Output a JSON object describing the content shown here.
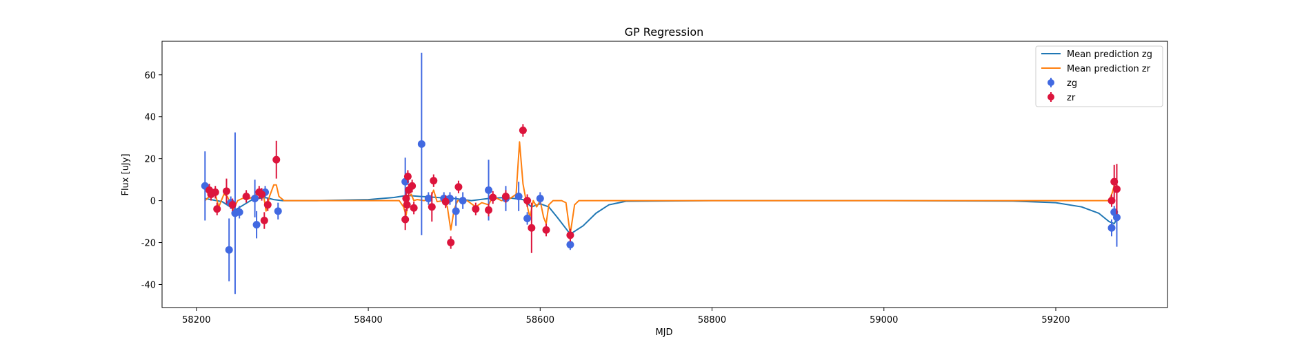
{
  "chart_data": {
    "type": "scatter",
    "title": "GP Regression",
    "xlabel": "MJD",
    "ylabel": "Flux [uJy]",
    "xlim": [
      58160,
      59330
    ],
    "ylim": [
      -51,
      76
    ],
    "xticks": [
      58200,
      58400,
      58600,
      58800,
      59000,
      59200
    ],
    "yticks": [
      -40,
      -20,
      0,
      20,
      40,
      60
    ],
    "grid": false,
    "legend_position": "top-right",
    "legend": [
      "Mean prediction zg",
      "Mean prediction zr",
      "zg",
      "zr"
    ],
    "colors": {
      "mean_zg": "#1f77b4",
      "mean_zr": "#ff7f0e",
      "zg": "#4169e1",
      "zr": "#dc143c"
    },
    "series": [
      {
        "name": "zg",
        "kind": "errorbar",
        "points": [
          {
            "x": 58210,
            "y": 7,
            "err": 16.5
          },
          {
            "x": 58238,
            "y": -23.5,
            "err": 15
          },
          {
            "x": 58240,
            "y": -1,
            "err": 3
          },
          {
            "x": 58245,
            "y": -6,
            "err": 38.5
          },
          {
            "x": 58250,
            "y": -5.5,
            "err": 3
          },
          {
            "x": 58268,
            "y": 1,
            "err": 9
          },
          {
            "x": 58270,
            "y": -11.5,
            "err": 6.5
          },
          {
            "x": 58280,
            "y": 4,
            "err": 3
          },
          {
            "x": 58295,
            "y": -5,
            "err": 4
          },
          {
            "x": 58443,
            "y": 9,
            "err": 11.5
          },
          {
            "x": 58462,
            "y": 27,
            "err": 43.5
          },
          {
            "x": 58470,
            "y": 1,
            "err": 3
          },
          {
            "x": 58488,
            "y": 1,
            "err": 3
          },
          {
            "x": 58495,
            "y": 1,
            "err": 3
          },
          {
            "x": 58502,
            "y": -5,
            "err": 7
          },
          {
            "x": 58510,
            "y": 0,
            "err": 4
          },
          {
            "x": 58540,
            "y": 5,
            "err": 14.5
          },
          {
            "x": 58560,
            "y": 1,
            "err": 6
          },
          {
            "x": 58575,
            "y": 2,
            "err": 7
          },
          {
            "x": 58585,
            "y": -8.5,
            "err": 3
          },
          {
            "x": 58600,
            "y": 1,
            "err": 3
          },
          {
            "x": 58635,
            "y": -21,
            "err": 2.5
          },
          {
            "x": 59265,
            "y": -13,
            "err": 4
          },
          {
            "x": 59268,
            "y": -5.5,
            "err": 3
          },
          {
            "x": 59271,
            "y": -8,
            "err": 14
          }
        ]
      },
      {
        "name": "zr",
        "kind": "errorbar",
        "points": [
          {
            "x": 58215,
            "y": 5,
            "err": 3
          },
          {
            "x": 58217,
            "y": 3,
            "err": 3
          },
          {
            "x": 58222,
            "y": 4,
            "err": 3
          },
          {
            "x": 58224,
            "y": -4,
            "err": 3
          },
          {
            "x": 58235,
            "y": 4.5,
            "err": 6
          },
          {
            "x": 58242,
            "y": -2,
            "err": 3
          },
          {
            "x": 58258,
            "y": 2,
            "err": 3
          },
          {
            "x": 58273,
            "y": 4,
            "err": 3
          },
          {
            "x": 58276,
            "y": 3,
            "err": 3
          },
          {
            "x": 58279,
            "y": -9.5,
            "err": 4
          },
          {
            "x": 58283,
            "y": -2,
            "err": 3
          },
          {
            "x": 58293,
            "y": 19.5,
            "err": 9
          },
          {
            "x": 58443,
            "y": -9,
            "err": 5
          },
          {
            "x": 58444,
            "y": 1,
            "err": 3
          },
          {
            "x": 58445,
            "y": -2,
            "err": 3
          },
          {
            "x": 58446,
            "y": 11.5,
            "err": 3
          },
          {
            "x": 58447,
            "y": 5,
            "err": 3
          },
          {
            "x": 58451,
            "y": 7,
            "err": 3
          },
          {
            "x": 58453,
            "y": -3.5,
            "err": 3
          },
          {
            "x": 58474,
            "y": -3,
            "err": 7
          },
          {
            "x": 58476,
            "y": 9.5,
            "err": 3
          },
          {
            "x": 58490,
            "y": -0.5,
            "err": 3
          },
          {
            "x": 58496,
            "y": -20,
            "err": 3
          },
          {
            "x": 58505,
            "y": 6.5,
            "err": 3
          },
          {
            "x": 58525,
            "y": -4,
            "err": 3
          },
          {
            "x": 58540,
            "y": -4.5,
            "err": 3
          },
          {
            "x": 58545,
            "y": 1.5,
            "err": 3
          },
          {
            "x": 58560,
            "y": 2,
            "err": 3
          },
          {
            "x": 58580,
            "y": 33.5,
            "err": 3
          },
          {
            "x": 58585,
            "y": 0,
            "err": 3
          },
          {
            "x": 58590,
            "y": -13,
            "err": 12
          },
          {
            "x": 58607,
            "y": -14,
            "err": 3
          },
          {
            "x": 58635,
            "y": -16.5,
            "err": 3
          },
          {
            "x": 59265,
            "y": 0,
            "err": 3
          },
          {
            "x": 59268,
            "y": 9,
            "err": 8
          },
          {
            "x": 59271,
            "y": 5.5,
            "err": 12
          }
        ]
      },
      {
        "name": "Mean prediction zg",
        "kind": "line",
        "x": [
          58210,
          58230,
          58245,
          58255,
          58265,
          58280,
          58290,
          58300,
          58340,
          58400,
          58430,
          58445,
          58460,
          58480,
          58500,
          58520,
          58540,
          58560,
          58580,
          58590,
          58600,
          58610,
          58620,
          58635,
          58650,
          58665,
          58680,
          58700,
          58800,
          59000,
          59150,
          59200,
          59230,
          59250,
          59262,
          59268,
          59272
        ],
        "y": [
          1,
          -0.5,
          -4.5,
          -2,
          0.5,
          1.5,
          0.5,
          0,
          0,
          0.5,
          1.5,
          2.5,
          2,
          1.5,
          1,
          0,
          1,
          1.5,
          0.5,
          -3,
          -1.5,
          -3,
          -8,
          -16,
          -12,
          -6,
          -2,
          -0.3,
          0,
          0,
          -0.2,
          -1,
          -3,
          -6,
          -10,
          -11,
          -8
        ]
      },
      {
        "name": "Mean prediction zr",
        "kind": "line",
        "x": [
          58210,
          58215,
          58222,
          58226,
          58232,
          58236,
          58240,
          58243,
          58248,
          58256,
          58262,
          58270,
          58274,
          58278,
          58281,
          58285,
          58290,
          58293,
          58296,
          58302,
          58320,
          58400,
          58436,
          58441,
          58444,
          58447,
          58450,
          58453,
          58457,
          58465,
          58472,
          58476,
          58480,
          58488,
          58492,
          58496,
          58500,
          58504,
          58508,
          58515,
          58525,
          58532,
          58540,
          58545,
          58555,
          58565,
          58572,
          58576,
          58580,
          58584,
          58588,
          58592,
          58596,
          58600,
          58604,
          58607,
          58610,
          58615,
          58625,
          58630,
          58635,
          58640,
          58645,
          58660,
          59200,
          59255,
          59262,
          59266,
          59269,
          59272
        ],
        "y": [
          0,
          2,
          3,
          -3,
          3,
          2,
          -2,
          -4,
          0,
          1.5,
          1,
          3,
          4,
          3,
          -5,
          2,
          7.5,
          7.5,
          2,
          0,
          0,
          0,
          0,
          -3,
          -7,
          2,
          3,
          0,
          0.5,
          0,
          1,
          5,
          -0.5,
          0,
          -3,
          -14,
          -4,
          0,
          0,
          0,
          -3,
          -1,
          -2,
          2,
          0,
          1,
          3,
          28,
          8,
          -1,
          -8,
          0,
          -3,
          0,
          -8,
          -11,
          -2,
          0,
          0,
          -1,
          -16,
          -2,
          0,
          0,
          0,
          0,
          0,
          4,
          9,
          5
        ]
      }
    ]
  }
}
